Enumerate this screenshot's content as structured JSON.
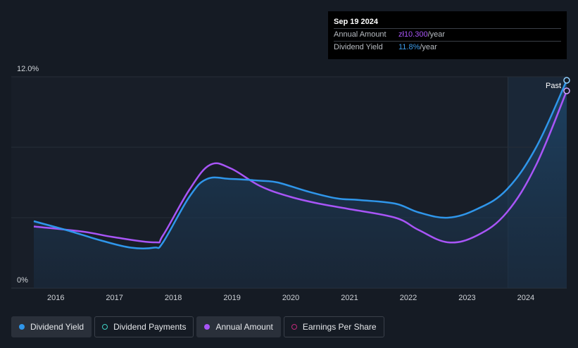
{
  "tooltip": {
    "date": "Sep 19 2024",
    "annual_amount_label": "Annual Amount",
    "annual_amount_value": "zł10.300",
    "annual_amount_unit": "/year",
    "dividend_yield_label": "Dividend Yield",
    "dividend_yield_value": "11.8%",
    "dividend_yield_unit": "/year"
  },
  "legend": {
    "dividend_yield": "Dividend Yield",
    "dividend_payments": "Dividend Payments",
    "annual_amount": "Annual Amount",
    "earnings_per_share": "Earnings Per Share"
  },
  "colors": {
    "dividend_yield": "#2f96ea",
    "annual_amount": "#a855f7",
    "dividend_payments": "#3fd1c4",
    "earnings_per_share": "#c02a7a"
  },
  "chart_data": {
    "type": "line",
    "x_tick_labels": [
      "2016",
      "2017",
      "2018",
      "2019",
      "2020",
      "2021",
      "2022",
      "2023",
      "2024"
    ],
    "x_ticks": [
      2016,
      2017,
      2018,
      2019,
      2020,
      2021,
      2022,
      2023,
      2024
    ],
    "xlim": [
      2015.65,
      2024.72
    ],
    "y_tick_labels": [
      "12.0%",
      "0%"
    ],
    "ylim": [
      0,
      12
    ],
    "past_label": "Past",
    "forecast_start": 2023.72,
    "series": [
      {
        "name": "Dividend Yield",
        "x": [
          2015.65,
          2016.2,
          2016.8,
          2017.3,
          2017.7,
          2017.85,
          2018.3,
          2018.6,
          2019.0,
          2019.5,
          2019.8,
          2020.3,
          2020.8,
          2021.2,
          2021.8,
          2022.2,
          2022.7,
          2023.2,
          2023.7,
          2024.2,
          2024.72
        ],
        "y": [
          3.8,
          3.3,
          2.7,
          2.3,
          2.3,
          2.6,
          5.2,
          6.2,
          6.2,
          6.1,
          6.0,
          5.5,
          5.1,
          5.0,
          4.8,
          4.3,
          4.0,
          4.5,
          5.6,
          8.0,
          11.8
        ]
      },
      {
        "name": "Annual Amount",
        "x": [
          2015.65,
          2016.5,
          2017.0,
          2017.7,
          2017.85,
          2018.3,
          2018.65,
          2019.0,
          2019.5,
          2020.0,
          2020.5,
          2021.0,
          2021.8,
          2022.2,
          2022.7,
          2023.2,
          2023.7,
          2024.2,
          2024.72
        ],
        "y": [
          3.5,
          3.2,
          2.9,
          2.6,
          3.0,
          5.6,
          7.0,
          6.8,
          5.8,
          5.2,
          4.8,
          4.5,
          4.0,
          3.3,
          2.6,
          3.0,
          4.3,
          7.0,
          11.2
        ]
      }
    ]
  }
}
